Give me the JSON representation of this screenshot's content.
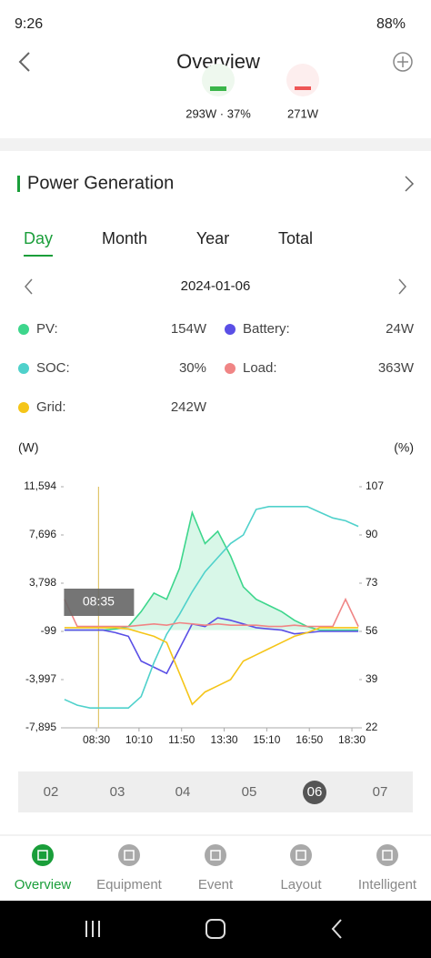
{
  "status_bar": {
    "time": "9:26",
    "battery": "88%"
  },
  "header": {
    "title": "Overview"
  },
  "summary": [
    "293W · 37%",
    "271W"
  ],
  "section": {
    "title": "Power Generation"
  },
  "tabs": {
    "items": [
      "Day",
      "Month",
      "Year",
      "Total"
    ],
    "active": 0
  },
  "date": "2024-01-06",
  "chart_data": {
    "type": "line",
    "y_label": "(W)",
    "y2_label": "(%)",
    "tooltip": {
      "x": "08:35",
      "label": "08:35"
    },
    "x": [
      "07:15",
      "07:45",
      "08:15",
      "08:45",
      "09:15",
      "09:45",
      "10:15",
      "10:45",
      "11:15",
      "11:45",
      "12:15",
      "12:45",
      "13:15",
      "13:45",
      "14:15",
      "14:45",
      "15:15",
      "15:45",
      "16:15",
      "16:45",
      "17:15",
      "17:45",
      "18:15",
      "18:45"
    ],
    "xlim": [
      "07:13",
      "18:47"
    ],
    "xticks": [
      "08:30",
      "10:10",
      "11:50",
      "13:30",
      "15:10",
      "16:50",
      "18:30"
    ],
    "ylim": [
      -7895,
      11594
    ],
    "yticks": [
      {
        "value": 11594,
        "label": "11,594"
      },
      {
        "value": 7696,
        "label": "7,696"
      },
      {
        "value": 3798,
        "label": "3,798"
      },
      -99,
      {
        "value": -3997,
        "label": "-3,997"
      },
      {
        "value": -7895,
        "label": "-7,895"
      }
    ],
    "y2lim": [
      22,
      107
    ],
    "y2ticks": [
      107,
      90,
      73,
      56,
      39,
      22
    ],
    "series": [
      {
        "name": "PV:",
        "reading": "154W",
        "color": "#3dd68c",
        "fill": true,
        "values": [
          0,
          0,
          0,
          0,
          100,
          300,
          1500,
          3000,
          2500,
          5000,
          9500,
          7000,
          8000,
          6000,
          3500,
          2500,
          2000,
          1500,
          800,
          300,
          0,
          0,
          0,
          0
        ]
      },
      {
        "name": "Battery:",
        "reading": "24W",
        "color": "#5a4fe6",
        "values": [
          0,
          0,
          0,
          0,
          -200,
          -500,
          -2500,
          -3000,
          -3500,
          -1500,
          500,
          300,
          1000,
          800,
          500,
          200,
          100,
          0,
          -300,
          -200,
          -100,
          -100,
          -100,
          -100
        ]
      },
      {
        "name": "SOC:",
        "reading": "30%",
        "color": "#4fd1cb",
        "axis": "y2",
        "values": [
          32,
          30,
          29,
          29,
          29,
          29,
          33,
          45,
          55,
          62,
          70,
          77,
          82,
          87,
          90,
          99,
          100,
          100,
          100,
          100,
          98,
          96,
          95,
          93
        ]
      },
      {
        "name": "Load:",
        "reading": "363W",
        "color": "#f08585",
        "values": [
          2500,
          300,
          300,
          300,
          300,
          300,
          400,
          500,
          400,
          600,
          500,
          400,
          500,
          400,
          400,
          400,
          300,
          300,
          400,
          300,
          300,
          300,
          2500,
          300
        ]
      },
      {
        "name": "Grid:",
        "reading": "242W",
        "color": "#f5c518",
        "values": [
          200,
          200,
          200,
          200,
          200,
          100,
          -200,
          -500,
          -1000,
          -3500,
          -6000,
          -5000,
          -4500,
          -4000,
          -2500,
          -2000,
          -1500,
          -1000,
          -500,
          -200,
          200,
          200,
          200,
          200
        ]
      }
    ]
  },
  "day_strip": {
    "items": [
      "02",
      "03",
      "04",
      "05",
      "06",
      "07"
    ],
    "selected": 4
  },
  "nav": {
    "items": [
      "Overview",
      "Equipment",
      "Event",
      "Layout",
      "Intelligent"
    ],
    "active": 0
  }
}
